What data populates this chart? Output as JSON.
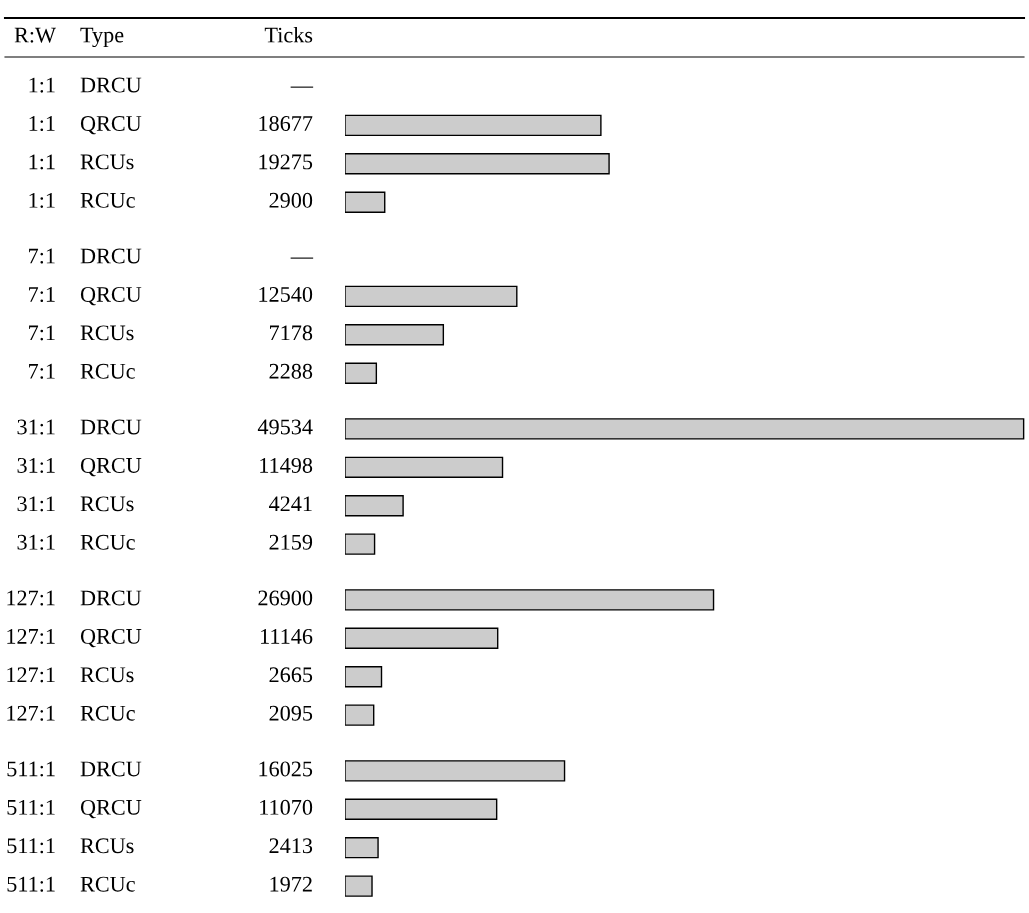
{
  "chart_data": {
    "type": "bar",
    "orientation": "horizontal",
    "annotations": [
      "R:W",
      "Type",
      "Ticks"
    ],
    "y_categories": [
      "1:1",
      "1:1",
      "1:1",
      "1:1",
      "7:1",
      "7:1",
      "7:1",
      "7:1",
      "31:1",
      "31:1",
      "31:1",
      "31:1",
      "127:1",
      "127:1",
      "127:1",
      "127:1",
      "511:1",
      "511:1",
      "511:1",
      "511:1"
    ],
    "categories": [
      "DRCU",
      "QRCU",
      "RCUs",
      "RCUc",
      "DRCU",
      "QRCU",
      "RCUs",
      "RCUc",
      "DRCU",
      "QRCU",
      "RCUs",
      "RCUc",
      "DRCU",
      "QRCU",
      "RCUs",
      "RCUc",
      "DRCU",
      "QRCU",
      "RCUs",
      "RCUc"
    ],
    "values": [
      null,
      18677,
      19275,
      2900,
      null,
      12540,
      7178,
      2288,
      49534,
      11498,
      4241,
      2159,
      26900,
      11146,
      2665,
      2095,
      16025,
      11070,
      2413,
      1972
    ],
    "value_labels": [
      "—",
      "18677",
      "19275",
      "2900",
      "—",
      "12540",
      "7178",
      "2288",
      "49534",
      "11498",
      "4241",
      "2159",
      "26900",
      "11146",
      "2665",
      "2095",
      "16025",
      "11070",
      "2413",
      "1972"
    ],
    "color": "#cccccc"
  }
}
